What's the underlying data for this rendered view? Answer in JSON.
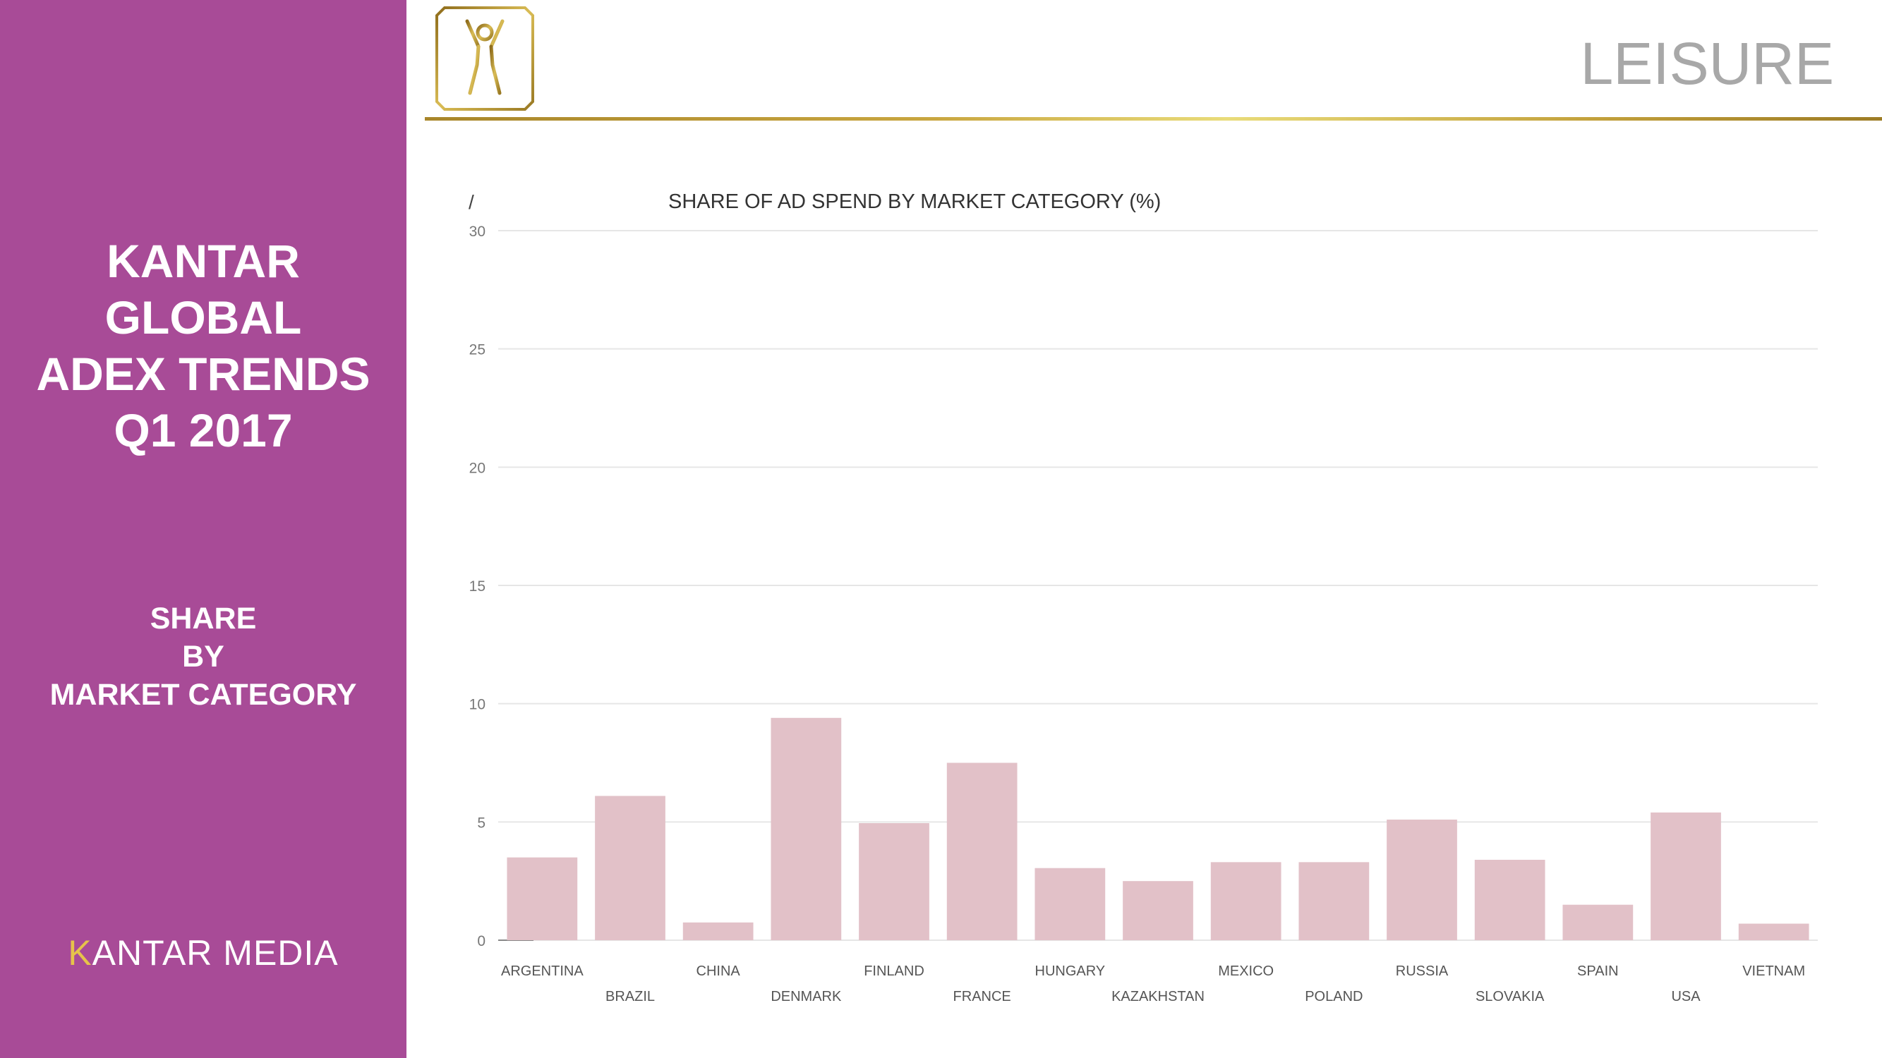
{
  "sidebar": {
    "title_lines": [
      "KANTAR",
      "GLOBAL",
      "ADEX TRENDS",
      "Q1 2017"
    ],
    "section_lines": [
      "SHARE",
      "BY",
      "MARKET CATEGORY"
    ],
    "logo_first": "K",
    "logo_rest": "ANTAR MEDIA"
  },
  "header": {
    "category": "LEISURE",
    "icon": "leisure-person-icon"
  },
  "colors": {
    "sidebar": "#a84b97",
    "bar": "#e2c1c8",
    "gold": "#c9a640"
  },
  "chart_data": {
    "type": "bar",
    "title": "SHARE OF AD SPEND BY MARKET CATEGORY (%)",
    "corner_mark": "/",
    "categories": [
      "ARGENTINA",
      "BRAZIL",
      "CHINA",
      "DENMARK",
      "FINLAND",
      "FRANCE",
      "HUNGARY",
      "KAZAKHSTAN",
      "MEXICO",
      "POLAND",
      "RUSSIA",
      "SLOVAKIA",
      "SPAIN",
      "USA",
      "VIETNAM"
    ],
    "values": [
      3.5,
      6.1,
      0.75,
      9.4,
      4.95,
      7.5,
      3.05,
      2.5,
      3.3,
      3.3,
      5.1,
      3.4,
      1.5,
      5.4,
      0.7
    ],
    "ylim": [
      0,
      30
    ],
    "yticks": [
      0,
      5,
      10,
      15,
      20,
      25,
      30
    ],
    "grid": true,
    "legend": "none"
  }
}
